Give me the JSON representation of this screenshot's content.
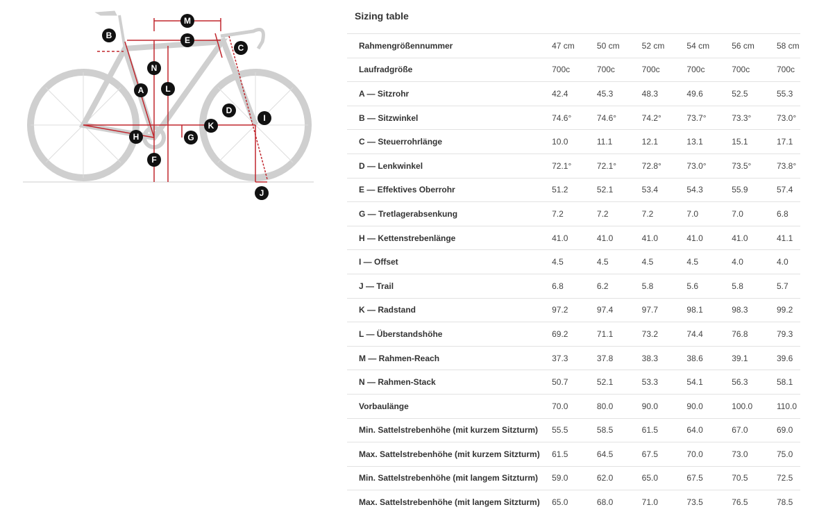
{
  "diagram": {
    "labels": [
      "M",
      "E",
      "B",
      "C",
      "N",
      "L",
      "A",
      "D",
      "I",
      "K",
      "H",
      "G",
      "F",
      "J"
    ],
    "accent": "#c0262d"
  },
  "title": "Sizing table",
  "rows": [
    {
      "label": "Rahmengrößennummer",
      "values": [
        "47 cm",
        "50 cm",
        "52 cm",
        "54 cm",
        "56 cm",
        "58 cm"
      ]
    },
    {
      "label": "Laufradgröße",
      "values": [
        "700c",
        "700c",
        "700c",
        "700c",
        "700c",
        "700c"
      ]
    },
    {
      "label": "A — Sitzrohr",
      "values": [
        "42.4",
        "45.3",
        "48.3",
        "49.6",
        "52.5",
        "55.3"
      ]
    },
    {
      "label": "B — Sitzwinkel",
      "values": [
        "74.6°",
        "74.6°",
        "74.2°",
        "73.7°",
        "73.3°",
        "73.0°"
      ]
    },
    {
      "label": "C — Steuerrohrlänge",
      "values": [
        "10.0",
        "11.1",
        "12.1",
        "13.1",
        "15.1",
        "17.1"
      ]
    },
    {
      "label": "D — Lenkwinkel",
      "values": [
        "72.1°",
        "72.1°",
        "72.8°",
        "73.0°",
        "73.5°",
        "73.8°"
      ]
    },
    {
      "label": "E — Effektives Oberrohr",
      "values": [
        "51.2",
        "52.1",
        "53.4",
        "54.3",
        "55.9",
        "57.4"
      ]
    },
    {
      "label": "G — Tretlagerabsenkung",
      "values": [
        "7.2",
        "7.2",
        "7.2",
        "7.0",
        "7.0",
        "6.8"
      ]
    },
    {
      "label": "H — Kettenstrebenlänge",
      "values": [
        "41.0",
        "41.0",
        "41.0",
        "41.0",
        "41.0",
        "41.1"
      ]
    },
    {
      "label": "I — Offset",
      "values": [
        "4.5",
        "4.5",
        "4.5",
        "4.5",
        "4.0",
        "4.0"
      ]
    },
    {
      "label": "J — Trail",
      "values": [
        "6.8",
        "6.2",
        "5.8",
        "5.6",
        "5.8",
        "5.7"
      ]
    },
    {
      "label": "K — Radstand",
      "values": [
        "97.2",
        "97.4",
        "97.7",
        "98.1",
        "98.3",
        "99.2"
      ]
    },
    {
      "label": "L — Überstandshöhe",
      "values": [
        "69.2",
        "71.1",
        "73.2",
        "74.4",
        "76.8",
        "79.3"
      ]
    },
    {
      "label": "M — Rahmen-Reach",
      "values": [
        "37.3",
        "37.8",
        "38.3",
        "38.6",
        "39.1",
        "39.6"
      ]
    },
    {
      "label": "N — Rahmen-Stack",
      "values": [
        "50.7",
        "52.1",
        "53.3",
        "54.1",
        "56.3",
        "58.1"
      ]
    },
    {
      "label": "Vorbaulänge",
      "values": [
        "70.0",
        "80.0",
        "90.0",
        "90.0",
        "100.0",
        "110.0"
      ]
    },
    {
      "label": "Min. Sattelstrebenhöhe (mit kurzem Sitzturm)",
      "values": [
        "55.5",
        "58.5",
        "61.5",
        "64.0",
        "67.0",
        "69.0"
      ]
    },
    {
      "label": "Max. Sattelstrebenhöhe (mit kurzem Sitzturm)",
      "values": [
        "61.5",
        "64.5",
        "67.5",
        "70.0",
        "73.0",
        "75.0"
      ]
    },
    {
      "label": "Min. Sattelstrebenhöhe (mit langem Sitzturm)",
      "values": [
        "59.0",
        "62.0",
        "65.0",
        "67.5",
        "70.5",
        "72.5"
      ]
    },
    {
      "label": "Max. Sattelstrebenhöhe (mit langem Sitzturm)",
      "values": [
        "65.0",
        "68.0",
        "71.0",
        "73.5",
        "76.5",
        "78.5"
      ]
    }
  ]
}
